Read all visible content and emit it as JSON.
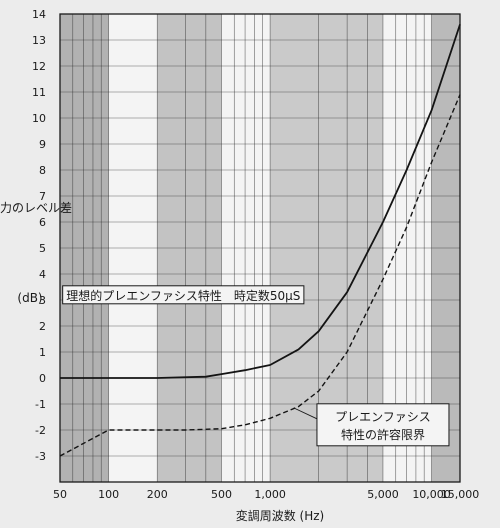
{
  "chart_data": {
    "type": "line",
    "title": "",
    "xlabel": "変調周波数 (Hz)",
    "ylabel": "出力のレベル差 (dB)",
    "ylabel_lines": [
      "出力のレベル差",
      "(dB)"
    ],
    "x_scale": "log",
    "xlim": [
      50,
      15000
    ],
    "ylim": [
      -4,
      14
    ],
    "grid": true,
    "x_ticks": [
      50,
      100,
      200,
      500,
      1000,
      5000,
      10000,
      15000
    ],
    "x_tick_labels": [
      "50",
      "100",
      "200",
      "500",
      "1,000",
      "5,000",
      "10,000",
      "15,000"
    ],
    "y_ticks": [
      -3,
      -2,
      -1,
      0,
      1,
      2,
      3,
      4,
      5,
      6,
      7,
      8,
      9,
      10,
      11,
      12,
      13,
      14
    ],
    "y_tick_labels": [
      "-3",
      "-2",
      "-1",
      "0",
      "1",
      "2",
      "3",
      "4",
      "5",
      "6",
      "7",
      "8",
      "9",
      "10",
      "11",
      "12",
      "13",
      "14"
    ],
    "series": [
      {
        "name": "理想的プレエンファシス特性　時定数50μS",
        "style": "solid",
        "color": "#141414",
        "x": [
          50,
          100,
          200,
          400,
          500,
          700,
          1000,
          1500,
          2000,
          3000,
          5000,
          7000,
          10000,
          15000
        ],
        "y": [
          0,
          0,
          0,
          0.05,
          0.15,
          0.3,
          0.5,
          1.1,
          1.8,
          3.3,
          6.0,
          8.0,
          10.3,
          13.6
        ]
      },
      {
        "name": "プレエンファシス特性の許容限界",
        "style": "dashed",
        "color": "#141414",
        "x": [
          50,
          100,
          200,
          300,
          500,
          700,
          1000,
          1500,
          2000,
          3000,
          5000,
          7000,
          10000,
          15000
        ],
        "y": [
          -3,
          -2,
          -2,
          -2,
          -1.95,
          -1.8,
          -1.55,
          -1.1,
          -0.5,
          1.0,
          3.8,
          5.8,
          8.3,
          10.9
        ]
      }
    ],
    "annotations": [
      {
        "text": "理想的プレエンファシス特性　時定数50μS",
        "x": 290,
        "y": 3.2,
        "boxed": true
      },
      {
        "text_lines": [
          "プレエンファシス",
          "特性の許容限界"
        ],
        "x": 5000,
        "y": -1.8,
        "boxed": true
      }
    ]
  }
}
